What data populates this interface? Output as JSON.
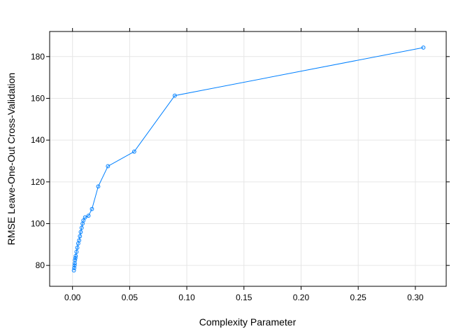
{
  "chart_data": {
    "type": "line",
    "title": "",
    "xlabel": "Complexity Parameter",
    "ylabel": "RMSE Leave-One-Out Cross-Validation",
    "xlim": [
      -0.02,
      0.327
    ],
    "ylim": [
      70,
      192
    ],
    "x_ticks": [
      0.0,
      0.05,
      0.1,
      0.15,
      0.2,
      0.25,
      0.3
    ],
    "x_tick_labels": [
      "0.00",
      "0.05",
      "0.10",
      "0.15",
      "0.20",
      "0.25",
      "0.30"
    ],
    "y_ticks": [
      80,
      100,
      120,
      140,
      160,
      180
    ],
    "y_tick_labels": [
      "80",
      "100",
      "120",
      "140",
      "160",
      "180"
    ],
    "grid": true,
    "legend": "none",
    "colors": {
      "series": "#0080ff",
      "grid": "#e6e6e6",
      "frame": "#000000"
    },
    "series": [
      {
        "marker": "circle",
        "points": [
          [
            0.0012,
            77.6
          ],
          [
            0.0015,
            78.8
          ],
          [
            0.0018,
            80.0
          ],
          [
            0.002,
            81.0
          ],
          [
            0.0022,
            82.5
          ],
          [
            0.0025,
            83.5
          ],
          [
            0.0028,
            84.5
          ],
          [
            0.0035,
            86.5
          ],
          [
            0.0042,
            88.5
          ],
          [
            0.005,
            90.5
          ],
          [
            0.0058,
            92.0
          ],
          [
            0.0065,
            94.0
          ],
          [
            0.0072,
            96.0
          ],
          [
            0.008,
            98.0
          ],
          [
            0.0088,
            100.0
          ],
          [
            0.0095,
            101.5
          ],
          [
            0.011,
            103.0
          ],
          [
            0.014,
            103.8
          ],
          [
            0.017,
            107.0
          ],
          [
            0.0225,
            117.8
          ],
          [
            0.031,
            127.5
          ],
          [
            0.054,
            134.5
          ],
          [
            0.0895,
            161.3
          ],
          [
            0.307,
            184.3
          ]
        ]
      }
    ]
  }
}
